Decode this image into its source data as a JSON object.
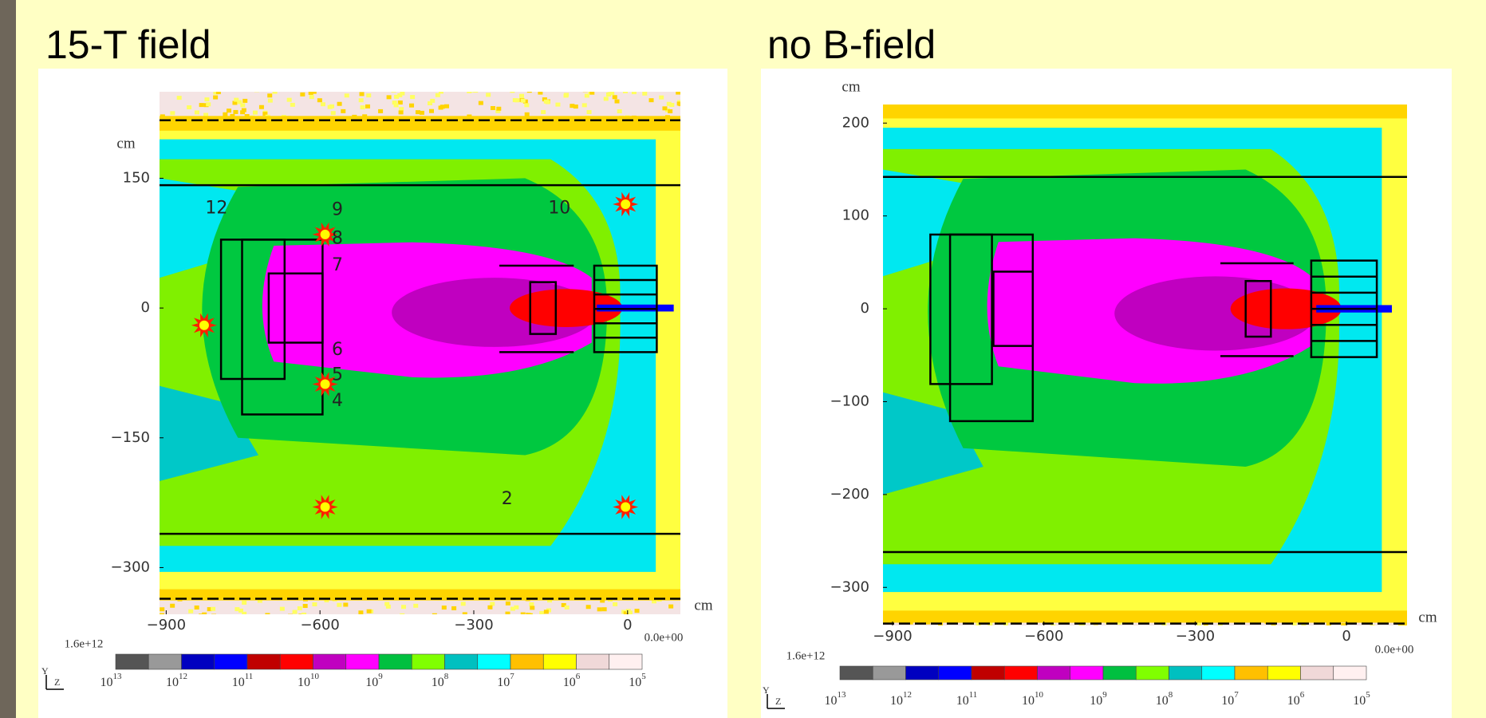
{
  "chart_data": [
    {
      "type": "heatmap",
      "title": "15-T field",
      "xlim": [
        -913,
        103
      ],
      "ylim": [
        -354,
        250
      ],
      "xticks": [
        {
          "value": -900,
          "label": "−900"
        },
        {
          "value": -600,
          "label": "−600"
        },
        {
          "value": -300,
          "label": "−300"
        },
        0
      ],
      "yticks": [
        {
          "value": -300,
          "label": "−300"
        },
        {
          "value": -150,
          "label": "−150"
        },
        0,
        150
      ],
      "x_unit": "cm",
      "y_unit": "cm",
      "colorbar": {
        "max_label": "1.6e+12",
        "min_label": "0.0e+00",
        "colors": [
          "#555555",
          "#999999",
          "#0000c0",
          "#0000ff",
          "#c00000",
          "#ff0000",
          "#c000c0",
          "#ff00ff",
          "#00c040",
          "#80ff00",
          "#00c0c0",
          "#00ffff",
          "#ffc000",
          "#ffff00",
          "#f0d8d8",
          "#fff0f0"
        ],
        "ticks": [
          {
            "base": "10",
            "exponent": "13"
          },
          {
            "base": "10",
            "exponent": "12"
          },
          {
            "base": "10",
            "exponent": "11"
          },
          {
            "base": "10",
            "exponent": "10"
          },
          {
            "base": "10",
            "exponent": "9"
          },
          {
            "base": "10",
            "exponent": "8"
          },
          {
            "base": "10",
            "exponent": "7"
          },
          {
            "base": "10",
            "exponent": "6"
          },
          {
            "base": "10",
            "exponent": "5"
          }
        ]
      },
      "orientation_labels": [
        "Y",
        "Z"
      ],
      "detector_labels": [
        "12",
        "9",
        "8",
        "7",
        "6",
        "5",
        "4",
        "10",
        "2"
      ]
    },
    {
      "type": "heatmap",
      "title": "no B-field",
      "xlim": [
        -919,
        120
      ],
      "ylim": [
        -341,
        220
      ],
      "xticks": [
        {
          "value": -900,
          "label": "−900"
        },
        {
          "value": -600,
          "label": "−600"
        },
        {
          "value": -300,
          "label": "−300"
        },
        0
      ],
      "yticks": [
        {
          "value": -300,
          "label": "−300"
        },
        {
          "value": -200,
          "label": "−200"
        },
        {
          "value": -100,
          "label": "−100"
        },
        0,
        100,
        200
      ],
      "x_unit": "cm",
      "y_unit": "cm",
      "colorbar": {
        "max_label": "1.6e+12",
        "min_label": "0.0e+00",
        "colors": [
          "#555555",
          "#999999",
          "#0000c0",
          "#0000ff",
          "#c00000",
          "#ff0000",
          "#c000c0",
          "#ff00ff",
          "#00c040",
          "#80ff00",
          "#00c0c0",
          "#00ffff",
          "#ffc000",
          "#ffff00",
          "#f0d8d8",
          "#fff0f0"
        ],
        "ticks": [
          {
            "base": "10",
            "exponent": "13"
          },
          {
            "base": "10",
            "exponent": "12"
          },
          {
            "base": "10",
            "exponent": "11"
          },
          {
            "base": "10",
            "exponent": "10"
          },
          {
            "base": "10",
            "exponent": "9"
          },
          {
            "base": "10",
            "exponent": "8"
          },
          {
            "base": "10",
            "exponent": "7"
          },
          {
            "base": "10",
            "exponent": "6"
          },
          {
            "base": "10",
            "exponent": "5"
          }
        ]
      },
      "orientation_labels": [
        "Y",
        "Z"
      ]
    }
  ]
}
